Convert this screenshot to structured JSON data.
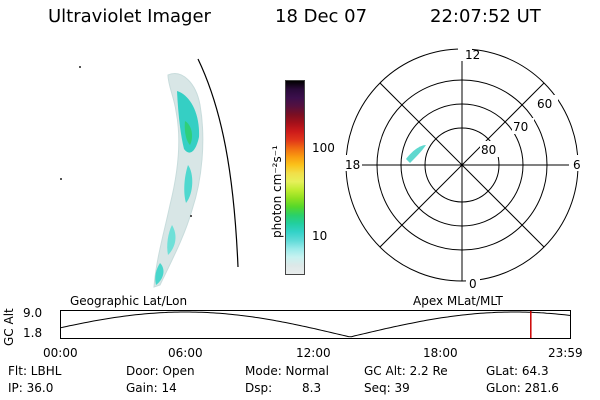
{
  "header": {
    "instrument": "Ultraviolet Imager",
    "date": "18 Dec 07",
    "time": "22:07:52 UT"
  },
  "colorbar": {
    "unit_label": "photon cm⁻²s⁻¹",
    "ticks": [
      "100",
      "10"
    ],
    "colors": [
      "#000000",
      "#2a0a3a",
      "#3c0f4c",
      "#55103f",
      "#7a0f22",
      "#a4101a",
      "#cc1a1a",
      "#e0341a",
      "#f06a12",
      "#f99a10",
      "#fbc21a",
      "#f1e04a",
      "#e6f05a",
      "#bfec30",
      "#8ee020",
      "#55d82a",
      "#2ad06a",
      "#22cfa0",
      "#33d2c8",
      "#5fdbd8",
      "#9aeaea",
      "#c8f2f0",
      "#dde8e8",
      "#e8ecec"
    ]
  },
  "polar_plot": {
    "mlt_labels": {
      "top": "12",
      "right": "6",
      "bottom": "0",
      "left": "18"
    },
    "lat_labels": [
      "60",
      "70",
      "80"
    ]
  },
  "timeline": {
    "left_title": "Geographic Lat/Lon",
    "right_title": "Apex MLat/MLT",
    "y_label": "GC Alt",
    "y_ticks": [
      "9.0",
      "1.8"
    ],
    "x_ticks": [
      "00:00",
      "06:00",
      "12:00",
      "18:00",
      "23:59"
    ],
    "current_time_marker": "22:07",
    "marker_color": "#cc0000"
  },
  "info": {
    "filter": "Flt: LBHL",
    "ip": "IP: 36.0",
    "door": "Door: Open",
    "gain": "Gain: 14",
    "mode": "Mode: Normal",
    "dsp_label": "Dsp:",
    "dsp_value": "8.3",
    "gc_alt": "GC Alt: 2.2 Re",
    "seq": "Seq: 39",
    "glat": "GLat: 64.3",
    "glon": "GLon: 281.6"
  }
}
